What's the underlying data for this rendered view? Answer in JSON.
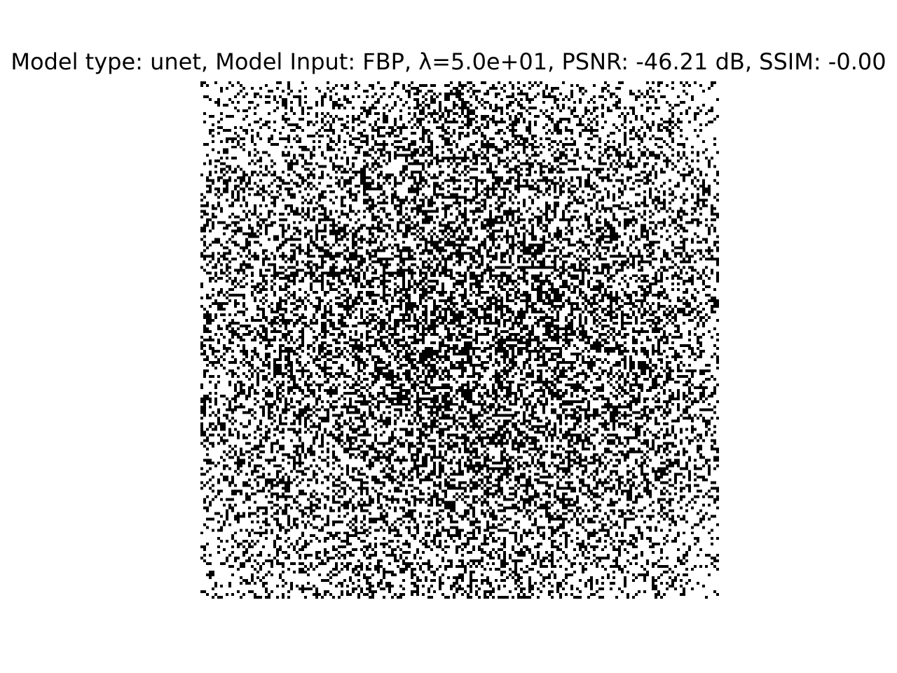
{
  "figure": {
    "title": "Model type: unet, Model Input: FBP, λ=5.0e+01, PSNR: -46.21 dB, SSIM: -0.00",
    "image_description_colors": {
      "foreground": "#000000",
      "background": "#ffffff"
    }
  }
}
